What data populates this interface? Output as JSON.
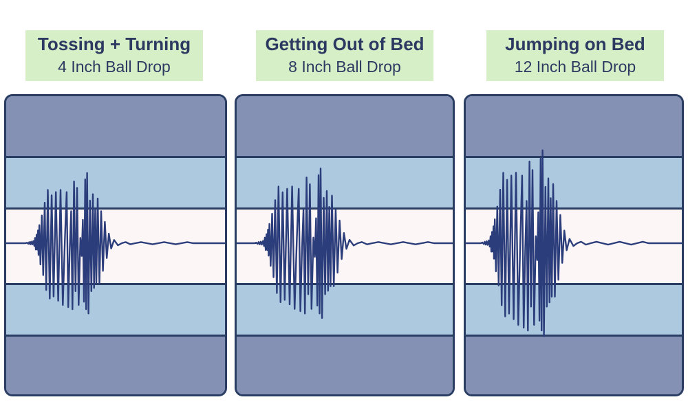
{
  "chart_data": {
    "type": "line",
    "panels": [
      {
        "title": "Tossing + Turning",
        "subtitle": "4 Inch Ball Drop",
        "wave": [
          [
            0,
            0
          ],
          [
            0.08,
            0.5
          ],
          [
            0.15,
            -0.6
          ],
          [
            0.2,
            1
          ],
          [
            0.25,
            -1
          ],
          [
            0.3,
            1.4
          ],
          [
            0.35,
            -1.2
          ],
          [
            0.41,
            2
          ],
          [
            0.46,
            -2.5
          ],
          [
            0.5,
            5
          ],
          [
            0.54,
            -6
          ],
          [
            0.58,
            8
          ],
          [
            0.62,
            -6
          ],
          [
            0.65,
            12
          ],
          [
            0.68,
            -11
          ],
          [
            0.72,
            17
          ],
          [
            0.78,
            -20
          ],
          [
            0.85,
            26
          ],
          [
            0.92,
            -30
          ],
          [
            1.0,
            38
          ],
          [
            1.08,
            -44
          ],
          [
            1.16,
            50
          ],
          [
            1.26,
            -52
          ],
          [
            1.36,
            45
          ],
          [
            1.46,
            -50
          ],
          [
            1.58,
            48
          ],
          [
            1.7,
            -54
          ],
          [
            1.82,
            50
          ],
          [
            1.94,
            -58
          ],
          [
            2.05,
            5
          ],
          [
            2.14,
            48
          ],
          [
            2.22,
            -60
          ],
          [
            2.3,
            -5
          ],
          [
            2.37,
            30
          ],
          [
            2.44,
            -62
          ],
          [
            2.52,
            58
          ],
          [
            2.6,
            -45
          ],
          [
            2.68,
            52
          ],
          [
            2.76,
            -58
          ],
          [
            2.85,
            5
          ],
          [
            2.92,
            -12
          ],
          [
            2.98,
            22
          ],
          [
            3.04,
            -55
          ],
          [
            3.1,
            60
          ],
          [
            3.15,
            -62
          ],
          [
            3.2,
            66
          ],
          [
            3.27,
            -66
          ],
          [
            3.35,
            40
          ],
          [
            3.42,
            -45
          ],
          [
            3.5,
            46
          ],
          [
            3.56,
            -42
          ],
          [
            3.62,
            32
          ],
          [
            3.68,
            -38
          ],
          [
            3.75,
            42
          ],
          [
            3.84,
            -38
          ],
          [
            3.93,
            30
          ],
          [
            4.02,
            -26
          ],
          [
            4.12,
            20
          ],
          [
            4.22,
            -14
          ],
          [
            4.33,
            9
          ],
          [
            4.45,
            -5
          ],
          [
            4.6,
            3
          ],
          [
            4.8,
            -2
          ],
          [
            5.0,
            0
          ],
          [
            5.2,
            1
          ],
          [
            5.45,
            -1
          ],
          [
            5.7,
            0
          ],
          [
            6.0,
            1
          ],
          [
            6.3,
            0
          ],
          [
            6.6,
            -1
          ],
          [
            6.9,
            0
          ],
          [
            7.2,
            1
          ],
          [
            7.5,
            0
          ],
          [
            7.8,
            -1
          ],
          [
            8.1,
            0
          ],
          [
            8.4,
            1
          ],
          [
            8.7,
            0
          ],
          [
            9.0,
            0
          ]
        ]
      },
      {
        "title": "Getting Out of Bed",
        "subtitle": "8 Inch Ball Drop",
        "wave": [
          [
            0,
            0
          ],
          [
            0.08,
            0.5
          ],
          [
            0.15,
            -0.6
          ],
          [
            0.2,
            1
          ],
          [
            0.25,
            -1
          ],
          [
            0.3,
            1.4
          ],
          [
            0.35,
            -1.2
          ],
          [
            0.41,
            2
          ],
          [
            0.46,
            -2.5
          ],
          [
            0.5,
            5
          ],
          [
            0.54,
            -6
          ],
          [
            0.58,
            8
          ],
          [
            0.62,
            -6
          ],
          [
            0.65,
            12
          ],
          [
            0.68,
            -11
          ],
          [
            0.72,
            17
          ],
          [
            0.78,
            -20
          ],
          [
            0.85,
            26
          ],
          [
            0.92,
            -30
          ],
          [
            1.0,
            38
          ],
          [
            1.08,
            -44
          ],
          [
            1.16,
            50
          ],
          [
            1.26,
            -52
          ],
          [
            1.36,
            45
          ],
          [
            1.46,
            -50
          ],
          [
            1.58,
            48
          ],
          [
            1.7,
            -54
          ],
          [
            1.82,
            50
          ],
          [
            1.94,
            -58
          ],
          [
            2.05,
            5
          ],
          [
            2.14,
            48
          ],
          [
            2.22,
            -60
          ],
          [
            2.3,
            -5
          ],
          [
            2.37,
            30
          ],
          [
            2.44,
            -62
          ],
          [
            2.52,
            58
          ],
          [
            2.6,
            -45
          ],
          [
            2.68,
            52
          ],
          [
            2.76,
            -58
          ],
          [
            2.85,
            5
          ],
          [
            2.92,
            -12
          ],
          [
            2.98,
            22
          ],
          [
            3.04,
            -55
          ],
          [
            3.1,
            60
          ],
          [
            3.15,
            -62
          ],
          [
            3.2,
            66
          ],
          [
            3.27,
            -66
          ],
          [
            3.35,
            40
          ],
          [
            3.42,
            -45
          ],
          [
            3.5,
            46
          ],
          [
            3.56,
            -42
          ],
          [
            3.62,
            32
          ],
          [
            3.68,
            -38
          ],
          [
            3.75,
            42
          ],
          [
            3.84,
            -38
          ],
          [
            3.93,
            30
          ],
          [
            4.02,
            -26
          ],
          [
            4.12,
            20
          ],
          [
            4.22,
            -14
          ],
          [
            4.33,
            9
          ],
          [
            4.45,
            -5
          ],
          [
            4.6,
            3
          ],
          [
            4.8,
            -2
          ],
          [
            5.0,
            0
          ],
          [
            5.2,
            1
          ],
          [
            5.45,
            -1
          ],
          [
            5.7,
            0
          ],
          [
            6.0,
            1
          ],
          [
            6.3,
            0
          ],
          [
            6.6,
            -1
          ],
          [
            6.9,
            0
          ],
          [
            7.2,
            1
          ],
          [
            7.5,
            0
          ],
          [
            7.8,
            -1
          ],
          [
            8.1,
            0
          ],
          [
            8.4,
            1
          ],
          [
            8.7,
            0
          ],
          [
            9.0,
            0
          ]
        ]
      },
      {
        "title": "Jumping on Bed",
        "subtitle": "12 Inch Ball Drop",
        "wave": [
          [
            0,
            0
          ],
          [
            0.08,
            0.5
          ],
          [
            0.15,
            -0.6
          ],
          [
            0.2,
            1
          ],
          [
            0.25,
            -1
          ],
          [
            0.3,
            1.4
          ],
          [
            0.35,
            -1.2
          ],
          [
            0.41,
            2
          ],
          [
            0.46,
            -2.5
          ],
          [
            0.5,
            5
          ],
          [
            0.54,
            -6
          ],
          [
            0.58,
            8
          ],
          [
            0.62,
            -6
          ],
          [
            0.65,
            12
          ],
          [
            0.68,
            -11
          ],
          [
            0.72,
            17
          ],
          [
            0.78,
            -20
          ],
          [
            0.85,
            26
          ],
          [
            0.92,
            -30
          ],
          [
            1.0,
            38
          ],
          [
            1.08,
            -44
          ],
          [
            1.16,
            50
          ],
          [
            1.26,
            -52
          ],
          [
            1.36,
            45
          ],
          [
            1.46,
            -50
          ],
          [
            1.58,
            48
          ],
          [
            1.7,
            -54
          ],
          [
            1.82,
            50
          ],
          [
            1.94,
            -58
          ],
          [
            2.05,
            5
          ],
          [
            2.14,
            48
          ],
          [
            2.22,
            -60
          ],
          [
            2.3,
            -5
          ],
          [
            2.37,
            30
          ],
          [
            2.44,
            -62
          ],
          [
            2.52,
            58
          ],
          [
            2.6,
            -45
          ],
          [
            2.68,
            52
          ],
          [
            2.76,
            -58
          ],
          [
            2.85,
            5
          ],
          [
            2.92,
            -12
          ],
          [
            2.98,
            22
          ],
          [
            3.04,
            -55
          ],
          [
            3.1,
            60
          ],
          [
            3.15,
            -62
          ],
          [
            3.2,
            66
          ],
          [
            3.27,
            -66
          ],
          [
            3.35,
            40
          ],
          [
            3.42,
            -45
          ],
          [
            3.5,
            46
          ],
          [
            3.56,
            -42
          ],
          [
            3.62,
            32
          ],
          [
            3.68,
            -38
          ],
          [
            3.75,
            42
          ],
          [
            3.84,
            -38
          ],
          [
            3.93,
            30
          ],
          [
            4.02,
            -26
          ],
          [
            4.12,
            20
          ],
          [
            4.22,
            -14
          ],
          [
            4.33,
            9
          ],
          [
            4.45,
            -5
          ],
          [
            4.6,
            3
          ],
          [
            4.8,
            -2
          ],
          [
            5.0,
            0
          ],
          [
            5.2,
            1
          ],
          [
            5.45,
            -1
          ],
          [
            5.7,
            0
          ],
          [
            6.0,
            1
          ],
          [
            6.3,
            0
          ],
          [
            6.6,
            -1
          ],
          [
            6.9,
            0
          ],
          [
            7.2,
            1
          ],
          [
            7.5,
            0
          ],
          [
            7.8,
            -1
          ],
          [
            8.1,
            0
          ],
          [
            8.4,
            1
          ],
          [
            8.7,
            0
          ],
          [
            9.0,
            0
          ]
        ]
      }
    ],
    "grid": false,
    "legend": "none"
  },
  "colors": {
    "label_bg": "#d6efc7",
    "title_text": "#2c3a62",
    "panel_border": "#2a3d63",
    "outer_layer": "#8591b4",
    "middle_layer": "#adc9e0",
    "core_layer": "#fdf6f6",
    "wave_stroke": "#2b3d7a"
  }
}
